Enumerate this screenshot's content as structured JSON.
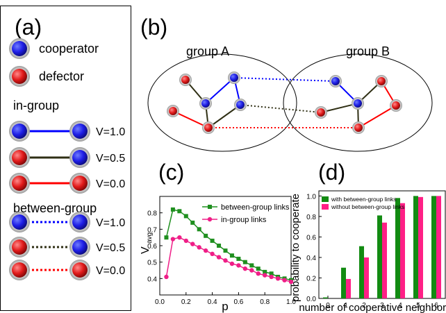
{
  "panel_a": {
    "label": "(a)",
    "legend": {
      "cooperator": "cooperator",
      "defector": "defector"
    },
    "in_group": {
      "title": "in-group",
      "rows": [
        {
          "value": "V=1.0"
        },
        {
          "value": "V=0.5"
        },
        {
          "value": "V=0.0"
        }
      ]
    },
    "between_group": {
      "title": "between-group",
      "rows": [
        {
          "value": "V=1.0"
        },
        {
          "value": "V=0.5"
        },
        {
          "value": "V=0.0"
        }
      ]
    }
  },
  "panel_b": {
    "label": "(b)",
    "group_a": "group A",
    "group_b": "group B"
  },
  "panel_c": {
    "label": "(c)"
  },
  "panel_d": {
    "label": "(d)"
  },
  "colors": {
    "cooperator": "#1e1ee6",
    "defector": "#e11a1a",
    "link_cooperate": "#0000ff",
    "link_mixed": "#2f2f14",
    "link_defect": "#ff0000",
    "series_between": "#1f8f1f",
    "series_in": "#ef1e87",
    "bar_with": "#128b12",
    "bar_without": "#ff1f86"
  },
  "chart_data": [
    {
      "type": "line",
      "xlabel": "p",
      "ylabel": "V",
      "ylabel_subscript": "avg",
      "xlim": [
        0.0,
        1.0
      ],
      "ylim": [
        0.3,
        0.9
      ],
      "xticks": [
        "0.0",
        "0.2",
        "0.4",
        "0.6",
        "0.8",
        "1.0"
      ],
      "yticks": [
        "0.4",
        "0.5",
        "0.6",
        "0.7",
        "0.8"
      ],
      "x": [
        0.05,
        0.1,
        0.15,
        0.2,
        0.25,
        0.3,
        0.35,
        0.4,
        0.45,
        0.5,
        0.55,
        0.6,
        0.65,
        0.7,
        0.75,
        0.8,
        0.85,
        0.9,
        0.95,
        1.0
      ],
      "series": [
        {
          "name": "between-group links",
          "values": [
            0.65,
            0.82,
            0.81,
            0.78,
            0.74,
            0.7,
            0.66,
            0.63,
            0.6,
            0.57,
            0.54,
            0.52,
            0.5,
            0.48,
            0.46,
            0.44,
            0.43,
            0.41,
            0.4,
            0.39
          ]
        },
        {
          "name": "in-group links",
          "values": [
            0.41,
            0.64,
            0.65,
            0.63,
            0.61,
            0.59,
            0.57,
            0.55,
            0.53,
            0.51,
            0.49,
            0.48,
            0.46,
            0.45,
            0.43,
            0.42,
            0.41,
            0.4,
            0.39,
            0.38
          ]
        }
      ],
      "legend_position": "top-right"
    },
    {
      "type": "bar",
      "xlabel": "number of cooperative neighbors",
      "ylabel": "probability to cooperate",
      "ylim": [
        0.0,
        1.05
      ],
      "yticks": [
        "0.0",
        "0.2",
        "0.4",
        "0.6",
        "0.8",
        "1.0"
      ],
      "categories": [
        "0",
        "1",
        "2",
        "3",
        "4",
        "5",
        "6"
      ],
      "series": [
        {
          "name": "with between-group links",
          "values": [
            0.01,
            0.3,
            0.51,
            0.81,
            0.98,
            1.0,
            1.0
          ]
        },
        {
          "name": "without between-group links",
          "values": [
            0.0,
            0.19,
            0.4,
            0.74,
            0.93,
            0.99,
            1.0
          ]
        }
      ],
      "legend_position": "top-left"
    }
  ]
}
